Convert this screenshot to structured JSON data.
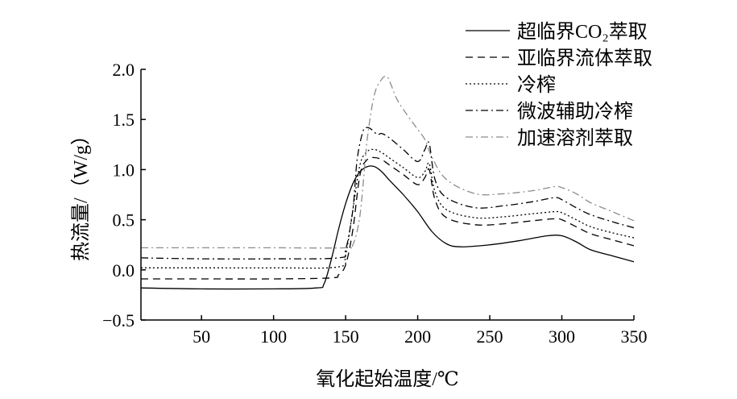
{
  "chart_data": {
    "type": "line",
    "title": "",
    "xlabel": "氧化起始温度/℃",
    "ylabel": "热流量/（W/g）",
    "xlim": [
      8,
      350
    ],
    "ylim": [
      -0.5,
      2.0
    ],
    "xticks": [
      50,
      100,
      150,
      200,
      250,
      300,
      350
    ],
    "xtick_labels": [
      "50",
      "100",
      "150",
      "200",
      "250",
      "300",
      "350"
    ],
    "yticks": [
      -0.5,
      0.0,
      0.5,
      1.0,
      1.5,
      2.0
    ],
    "ytick_labels": [
      "−0.5",
      "0.0",
      "0.5",
      "1.0",
      "1.5",
      "2.0"
    ],
    "grid": false,
    "legend_position": "top-right",
    "series": [
      {
        "name": "超临界CO₂萃取",
        "color": "#000000",
        "dash": "solid",
        "x": [
          8,
          50,
          100,
          130,
          135,
          140,
          145,
          150,
          155,
          160,
          165,
          170,
          175,
          180,
          190,
          200,
          210,
          220,
          230,
          250,
          270,
          290,
          300,
          310,
          320,
          335,
          350
        ],
        "y": [
          -0.18,
          -0.19,
          -0.19,
          -0.18,
          -0.14,
          0.1,
          0.4,
          0.66,
          0.86,
          0.98,
          1.03,
          1.03,
          0.98,
          0.9,
          0.75,
          0.58,
          0.38,
          0.26,
          0.23,
          0.25,
          0.29,
          0.34,
          0.34,
          0.28,
          0.2,
          0.14,
          0.08
        ]
      },
      {
        "name": "亚临界流体萃取",
        "color": "#000000",
        "dash": "dashed",
        "x": [
          8,
          50,
          100,
          140,
          145,
          150,
          155,
          160,
          165,
          170,
          175,
          180,
          190,
          200,
          205,
          208,
          212,
          220,
          240,
          260,
          280,
          295,
          300,
          310,
          320,
          335,
          350
        ],
        "y": [
          -0.09,
          -0.09,
          -0.09,
          -0.08,
          -0.05,
          0.05,
          0.4,
          0.95,
          1.1,
          1.12,
          1.1,
          1.05,
          0.95,
          0.85,
          0.92,
          1.0,
          0.7,
          0.52,
          0.45,
          0.46,
          0.49,
          0.51,
          0.5,
          0.43,
          0.36,
          0.3,
          0.24
        ]
      },
      {
        "name": "冷榨",
        "color": "#000000",
        "dash": "dotted",
        "x": [
          8,
          50,
          100,
          145,
          150,
          155,
          160,
          165,
          170,
          175,
          180,
          190,
          200,
          205,
          208,
          212,
          220,
          240,
          260,
          280,
          295,
          300,
          310,
          320,
          335,
          350
        ],
        "y": [
          0.02,
          0.02,
          0.02,
          0.03,
          0.15,
          0.6,
          1.05,
          1.18,
          1.2,
          1.17,
          1.12,
          1.02,
          0.92,
          0.98,
          1.06,
          0.78,
          0.6,
          0.52,
          0.53,
          0.56,
          0.58,
          0.57,
          0.5,
          0.43,
          0.37,
          0.32
        ]
      },
      {
        "name": "微波辅助冷榨",
        "color": "#000000",
        "dash": "dashdot",
        "x": [
          8,
          50,
          100,
          145,
          150,
          155,
          158,
          162,
          165,
          168,
          172,
          175,
          180,
          190,
          200,
          205,
          208,
          212,
          220,
          240,
          260,
          280,
          295,
          300,
          310,
          320,
          335,
          350
        ],
        "y": [
          0.12,
          0.11,
          0.11,
          0.12,
          0.2,
          0.6,
          1.1,
          1.38,
          1.42,
          1.4,
          1.35,
          1.36,
          1.32,
          1.2,
          1.08,
          1.2,
          1.26,
          0.9,
          0.72,
          0.62,
          0.64,
          0.68,
          0.72,
          0.7,
          0.62,
          0.55,
          0.48,
          0.42
        ]
      },
      {
        "name": "加速溶剂萃取",
        "color": "#8c8c8c",
        "dash": "dashdot",
        "x": [
          8,
          50,
          100,
          150,
          155,
          160,
          165,
          170,
          175,
          178,
          180,
          185,
          190,
          200,
          205,
          210,
          220,
          240,
          260,
          280,
          295,
          300,
          310,
          320,
          335,
          350
        ],
        "y": [
          0.22,
          0.22,
          0.22,
          0.22,
          0.25,
          0.55,
          1.3,
          1.75,
          1.9,
          1.93,
          1.9,
          1.72,
          1.6,
          1.4,
          1.3,
          1.12,
          0.9,
          0.76,
          0.76,
          0.79,
          0.83,
          0.82,
          0.76,
          0.67,
          0.58,
          0.49
        ]
      }
    ]
  }
}
